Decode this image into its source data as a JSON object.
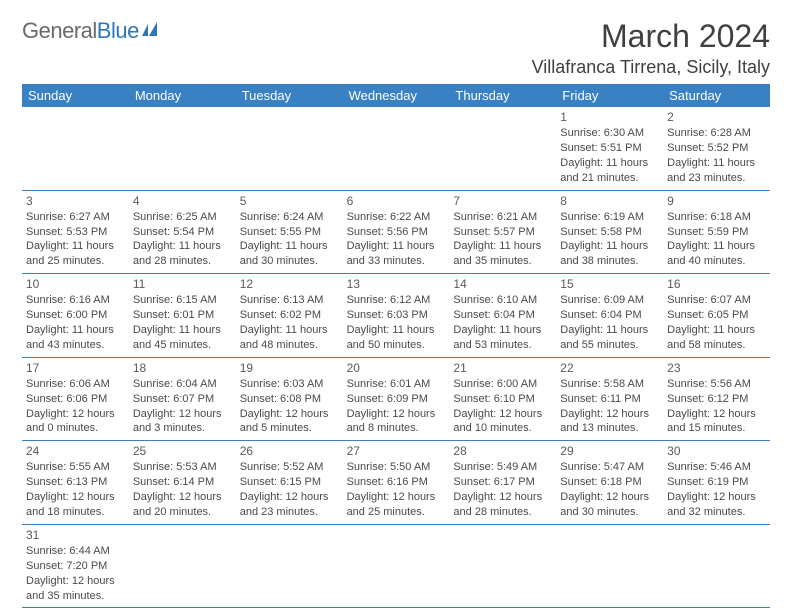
{
  "brand": {
    "part1": "General",
    "part2": "Blue"
  },
  "title": "March 2024",
  "location": "Villafranca Tirrena, Sicily, Italy",
  "colors": {
    "header_bg": "#3a81c4",
    "header_text": "#ffffff",
    "brand_gray": "#6a6a6a",
    "brand_blue": "#2f76b8",
    "text": "#4a4a4a",
    "rule": "#3a81c4"
  },
  "dayNames": [
    "Sunday",
    "Monday",
    "Tuesday",
    "Wednesday",
    "Thursday",
    "Friday",
    "Saturday"
  ],
  "weeks": [
    [
      null,
      null,
      null,
      null,
      null,
      {
        "n": "1",
        "sr": "Sunrise: 6:30 AM",
        "ss": "Sunset: 5:51 PM",
        "d1": "Daylight: 11 hours",
        "d2": "and 21 minutes."
      },
      {
        "n": "2",
        "sr": "Sunrise: 6:28 AM",
        "ss": "Sunset: 5:52 PM",
        "d1": "Daylight: 11 hours",
        "d2": "and 23 minutes."
      }
    ],
    [
      {
        "n": "3",
        "sr": "Sunrise: 6:27 AM",
        "ss": "Sunset: 5:53 PM",
        "d1": "Daylight: 11 hours",
        "d2": "and 25 minutes."
      },
      {
        "n": "4",
        "sr": "Sunrise: 6:25 AM",
        "ss": "Sunset: 5:54 PM",
        "d1": "Daylight: 11 hours",
        "d2": "and 28 minutes."
      },
      {
        "n": "5",
        "sr": "Sunrise: 6:24 AM",
        "ss": "Sunset: 5:55 PM",
        "d1": "Daylight: 11 hours",
        "d2": "and 30 minutes."
      },
      {
        "n": "6",
        "sr": "Sunrise: 6:22 AM",
        "ss": "Sunset: 5:56 PM",
        "d1": "Daylight: 11 hours",
        "d2": "and 33 minutes."
      },
      {
        "n": "7",
        "sr": "Sunrise: 6:21 AM",
        "ss": "Sunset: 5:57 PM",
        "d1": "Daylight: 11 hours",
        "d2": "and 35 minutes."
      },
      {
        "n": "8",
        "sr": "Sunrise: 6:19 AM",
        "ss": "Sunset: 5:58 PM",
        "d1": "Daylight: 11 hours",
        "d2": "and 38 minutes."
      },
      {
        "n": "9",
        "sr": "Sunrise: 6:18 AM",
        "ss": "Sunset: 5:59 PM",
        "d1": "Daylight: 11 hours",
        "d2": "and 40 minutes."
      }
    ],
    [
      {
        "n": "10",
        "sr": "Sunrise: 6:16 AM",
        "ss": "Sunset: 6:00 PM",
        "d1": "Daylight: 11 hours",
        "d2": "and 43 minutes."
      },
      {
        "n": "11",
        "sr": "Sunrise: 6:15 AM",
        "ss": "Sunset: 6:01 PM",
        "d1": "Daylight: 11 hours",
        "d2": "and 45 minutes."
      },
      {
        "n": "12",
        "sr": "Sunrise: 6:13 AM",
        "ss": "Sunset: 6:02 PM",
        "d1": "Daylight: 11 hours",
        "d2": "and 48 minutes."
      },
      {
        "n": "13",
        "sr": "Sunrise: 6:12 AM",
        "ss": "Sunset: 6:03 PM",
        "d1": "Daylight: 11 hours",
        "d2": "and 50 minutes."
      },
      {
        "n": "14",
        "sr": "Sunrise: 6:10 AM",
        "ss": "Sunset: 6:04 PM",
        "d1": "Daylight: 11 hours",
        "d2": "and 53 minutes."
      },
      {
        "n": "15",
        "sr": "Sunrise: 6:09 AM",
        "ss": "Sunset: 6:04 PM",
        "d1": "Daylight: 11 hours",
        "d2": "and 55 minutes."
      },
      {
        "n": "16",
        "sr": "Sunrise: 6:07 AM",
        "ss": "Sunset: 6:05 PM",
        "d1": "Daylight: 11 hours",
        "d2": "and 58 minutes."
      }
    ],
    [
      {
        "n": "17",
        "sr": "Sunrise: 6:06 AM",
        "ss": "Sunset: 6:06 PM",
        "d1": "Daylight: 12 hours",
        "d2": "and 0 minutes."
      },
      {
        "n": "18",
        "sr": "Sunrise: 6:04 AM",
        "ss": "Sunset: 6:07 PM",
        "d1": "Daylight: 12 hours",
        "d2": "and 3 minutes."
      },
      {
        "n": "19",
        "sr": "Sunrise: 6:03 AM",
        "ss": "Sunset: 6:08 PM",
        "d1": "Daylight: 12 hours",
        "d2": "and 5 minutes."
      },
      {
        "n": "20",
        "sr": "Sunrise: 6:01 AM",
        "ss": "Sunset: 6:09 PM",
        "d1": "Daylight: 12 hours",
        "d2": "and 8 minutes."
      },
      {
        "n": "21",
        "sr": "Sunrise: 6:00 AM",
        "ss": "Sunset: 6:10 PM",
        "d1": "Daylight: 12 hours",
        "d2": "and 10 minutes."
      },
      {
        "n": "22",
        "sr": "Sunrise: 5:58 AM",
        "ss": "Sunset: 6:11 PM",
        "d1": "Daylight: 12 hours",
        "d2": "and 13 minutes."
      },
      {
        "n": "23",
        "sr": "Sunrise: 5:56 AM",
        "ss": "Sunset: 6:12 PM",
        "d1": "Daylight: 12 hours",
        "d2": "and 15 minutes."
      }
    ],
    [
      {
        "n": "24",
        "sr": "Sunrise: 5:55 AM",
        "ss": "Sunset: 6:13 PM",
        "d1": "Daylight: 12 hours",
        "d2": "and 18 minutes."
      },
      {
        "n": "25",
        "sr": "Sunrise: 5:53 AM",
        "ss": "Sunset: 6:14 PM",
        "d1": "Daylight: 12 hours",
        "d2": "and 20 minutes."
      },
      {
        "n": "26",
        "sr": "Sunrise: 5:52 AM",
        "ss": "Sunset: 6:15 PM",
        "d1": "Daylight: 12 hours",
        "d2": "and 23 minutes."
      },
      {
        "n": "27",
        "sr": "Sunrise: 5:50 AM",
        "ss": "Sunset: 6:16 PM",
        "d1": "Daylight: 12 hours",
        "d2": "and 25 minutes."
      },
      {
        "n": "28",
        "sr": "Sunrise: 5:49 AM",
        "ss": "Sunset: 6:17 PM",
        "d1": "Daylight: 12 hours",
        "d2": "and 28 minutes."
      },
      {
        "n": "29",
        "sr": "Sunrise: 5:47 AM",
        "ss": "Sunset: 6:18 PM",
        "d1": "Daylight: 12 hours",
        "d2": "and 30 minutes."
      },
      {
        "n": "30",
        "sr": "Sunrise: 5:46 AM",
        "ss": "Sunset: 6:19 PM",
        "d1": "Daylight: 12 hours",
        "d2": "and 32 minutes."
      }
    ],
    [
      {
        "n": "31",
        "sr": "Sunrise: 6:44 AM",
        "ss": "Sunset: 7:20 PM",
        "d1": "Daylight: 12 hours",
        "d2": "and 35 minutes."
      },
      null,
      null,
      null,
      null,
      null,
      null
    ]
  ]
}
